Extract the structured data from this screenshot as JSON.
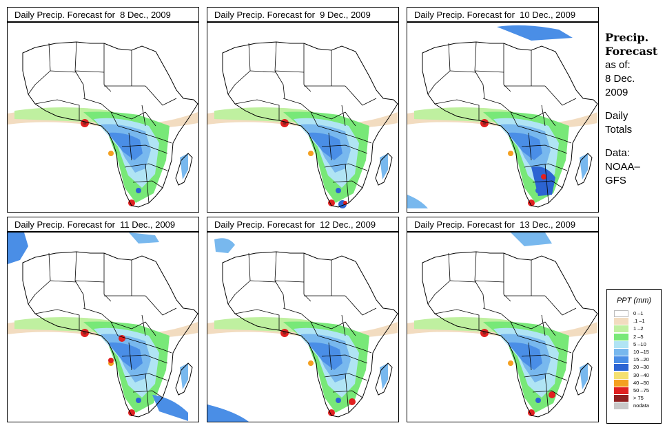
{
  "panels": [
    {
      "title": "Daily Precip. Forecast for  8 Dec., 2009"
    },
    {
      "title": "Daily Precip. Forecast for  9 Dec., 2009"
    },
    {
      "title": "Daily Precip. Forecast for  10 Dec., 2009"
    },
    {
      "title": "Daily Precip. Forecast for  11 Dec., 2009"
    },
    {
      "title": "Daily Precip. Forecast for  12 Dec., 2009"
    },
    {
      "title": "Daily Precip. Forecast for  13 Dec., 2009"
    }
  ],
  "side": {
    "title_line1": "Precip.",
    "title_line2": "Forecast",
    "asof_label": "as of:",
    "date_line1": "8 Dec.",
    "date_line2": "2009",
    "daily_line1": "Daily",
    "daily_line2": "Totals",
    "data_line1": "Data:",
    "data_line2": "NOAA–",
    "data_line3": "GFS"
  },
  "legend": {
    "title": "PPT (mm)",
    "entries": [
      {
        "label": "0 –1",
        "color": "#ffffff"
      },
      {
        "label": ".1 –1",
        "color": "#f2dcc0"
      },
      {
        "label": "1 –2",
        "color": "#bff0a0"
      },
      {
        "label": "2 –5",
        "color": "#78e878"
      },
      {
        "label": "5 –10",
        "color": "#b0e4f4"
      },
      {
        "label": "10 –15",
        "color": "#78b8ee"
      },
      {
        "label": "15 –20",
        "color": "#4a8ee6"
      },
      {
        "label": "20 –30",
        "color": "#2c64d2"
      },
      {
        "label": "30 –40",
        "color": "#f4e070"
      },
      {
        "label": "40 –50",
        "color": "#f4a020"
      },
      {
        "label": "50 –75",
        "color": "#e02020"
      },
      {
        "label": "> 75",
        "color": "#902020"
      },
      {
        "label": "nodata",
        "color": "#c8c8c8"
      }
    ]
  }
}
